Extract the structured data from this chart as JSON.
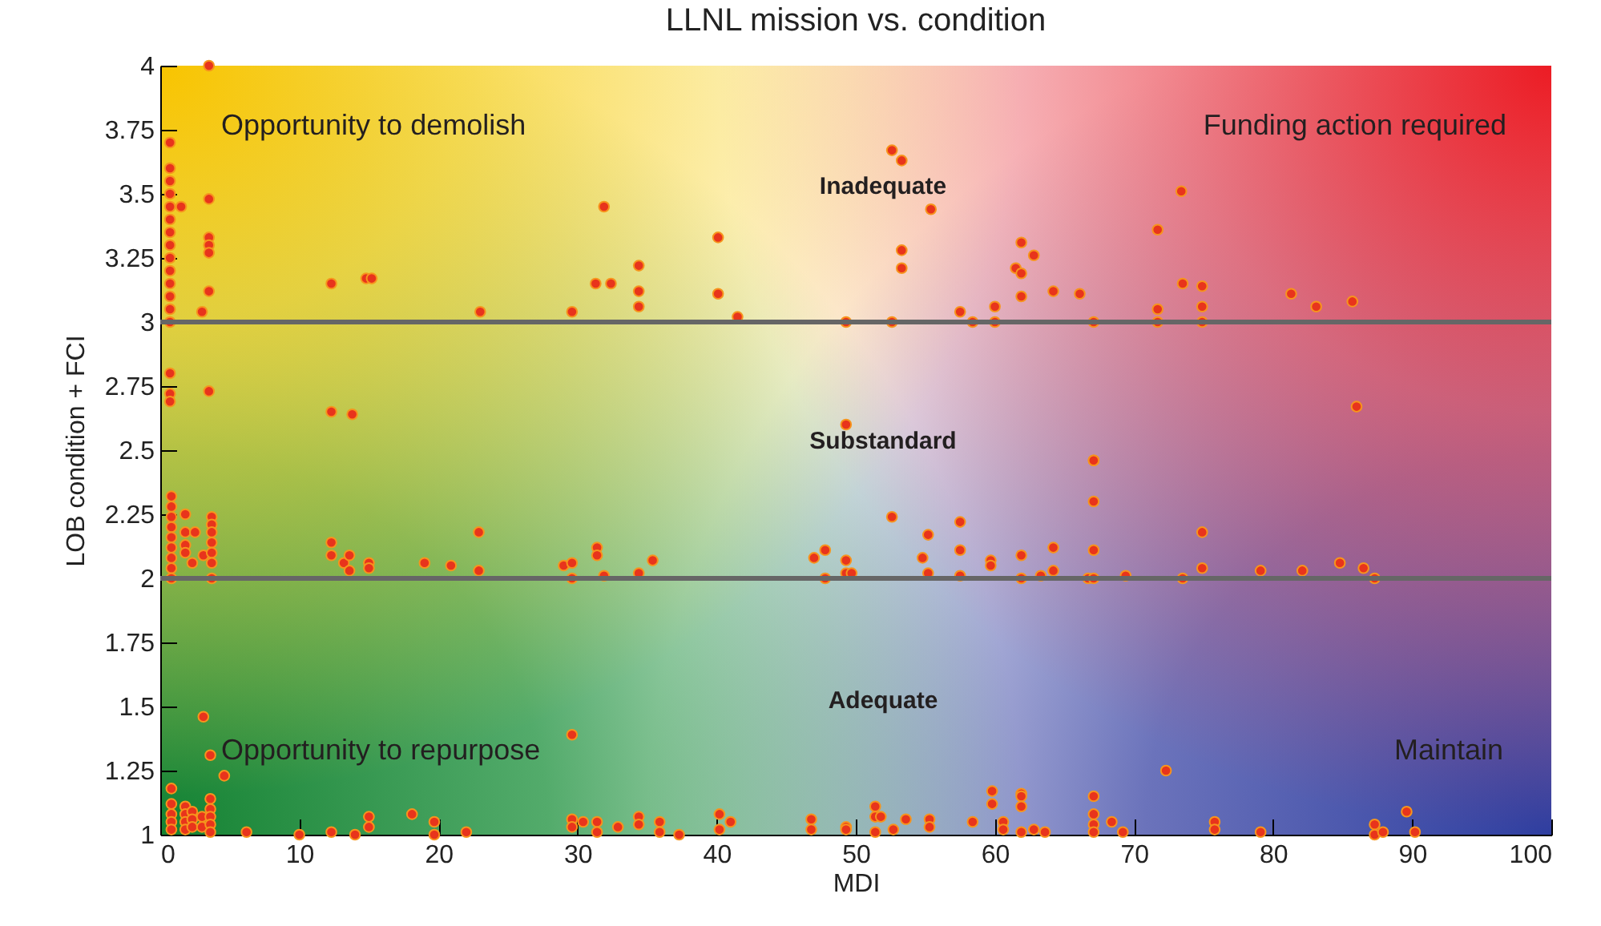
{
  "chart_data": {
    "type": "scatter",
    "title": "LLNL mission vs. condition",
    "xlabel": "MDI",
    "ylabel": "LOB condition + FCI",
    "xlim": [
      0,
      100
    ],
    "xticks": [
      0,
      10,
      20,
      30,
      40,
      50,
      60,
      70,
      80,
      90,
      100
    ],
    "ylim": [
      1,
      4
    ],
    "yticks": [
      1,
      1.25,
      1.5,
      1.75,
      2,
      2.25,
      2.5,
      2.75,
      3,
      3.25,
      3.5,
      3.75,
      4
    ],
    "grid": false,
    "marker": "circle",
    "ref_lines": [
      {
        "axis": "y",
        "value": 3,
        "color": "#666666"
      },
      {
        "axis": "y",
        "value": 2,
        "color": "#666666"
      }
    ],
    "annotations": [
      "Opportunity to demolish",
      "Funding action required",
      "Inadequate",
      "Substandard",
      "Adequate",
      "Opportunity to repurpose",
      "Maintain"
    ],
    "series": [
      {
        "color": "#e8341c",
        "x": [
          0.7,
          0.7,
          0.7,
          0.7,
          0.7,
          0.7,
          0.7,
          0.7,
          0.7,
          0.7,
          0.7,
          0.7,
          0.7,
          0.7,
          0.7,
          0.7,
          0.7,
          1.5,
          3.5,
          3.5,
          3.5,
          3.5,
          3.5,
          3.5,
          3.0,
          3.5,
          12.3,
          12.3,
          13.8,
          14.8,
          15.2,
          23,
          29.6,
          31.3,
          31.9,
          32.4,
          34.4,
          34.4,
          34.4,
          40.1,
          40.1,
          41.5,
          49.3,
          49.3,
          52.6,
          53.3,
          55.4,
          53.3,
          53.3,
          52.6,
          57.5,
          58.4,
          60.0,
          60.0,
          61.9,
          62.8,
          61.5,
          61.9,
          61.9,
          64.2,
          66.1,
          67.1,
          67.1,
          71.7,
          71.7,
          71.7,
          73.4,
          73.5,
          74.9,
          74.9,
          74.9,
          81.3,
          83.1,
          85.7,
          86.0,
          0.8,
          0.8,
          0.8,
          0.8,
          0.8,
          0.8,
          0.8,
          0.8,
          0.8,
          1.8,
          1.8,
          1.8,
          1.8,
          2.3,
          2.5,
          3.1,
          3.7,
          3.7,
          3.7,
          3.7,
          3.7,
          3.7,
          3.7,
          12.3,
          12.3,
          13.2,
          13.6,
          13.6,
          15,
          15,
          19,
          20.9,
          22.9,
          22.9,
          29,
          29.6,
          29.6,
          31.4,
          31.4,
          31.9,
          34.4,
          35.4,
          47.0,
          47.8,
          47.8,
          49.3,
          49.3,
          49.7,
          52.6,
          54.8,
          55.2,
          55.2,
          57.5,
          57.5,
          57.5,
          59.7,
          59.7,
          61.9,
          61.9,
          63.3,
          64.2,
          64.2,
          66.7,
          67.1,
          67.1,
          67.1,
          67.1,
          69.4,
          73.5,
          74.9,
          74.9,
          79.1,
          82.1,
          84.8,
          86.5,
          87.3,
          3.1,
          3.6,
          4.6,
          0.8,
          0.8,
          0.8,
          0.8,
          0.8,
          1.8,
          1.8,
          1.8,
          1.8,
          2.3,
          2.3,
          2.3,
          3.0,
          3.0,
          3.6,
          3.6,
          3.6,
          3.6,
          3.6,
          6.2,
          10,
          12.3,
          14,
          15,
          15,
          18.1,
          19.7,
          19.7,
          22,
          29.6,
          29.6,
          29.6,
          30.4,
          31.4,
          31.4,
          32.9,
          34.4,
          34.4,
          35.9,
          35.9,
          37.3,
          40.2,
          40.2,
          41,
          46.8,
          46.8,
          49.3,
          49.3,
          51.4,
          51.4,
          51.4,
          51.8,
          52.7,
          53.6,
          55.3,
          55.3,
          58.4,
          59.8,
          59.8,
          60.6,
          60.6,
          61.9,
          61.9,
          61.9,
          61.9,
          62.8,
          63.6,
          67.1,
          67.1,
          67.1,
          67.1,
          68.4,
          69.2,
          72.3,
          75.8,
          75.8,
          79.1,
          87.3,
          87.3,
          87.9,
          89.6,
          90.2
        ],
        "values": [
          3.7,
          3.6,
          3.55,
          3.5,
          3.45,
          3.4,
          3.35,
          3.3,
          3.25,
          3.2,
          3.15,
          3.1,
          3.05,
          3.0,
          2.8,
          2.72,
          2.69,
          3.45,
          4.0,
          3.48,
          3.33,
          3.3,
          3.27,
          3.12,
          3.04,
          2.73,
          3.15,
          2.65,
          2.64,
          3.17,
          3.17,
          3.04,
          3.04,
          3.15,
          3.45,
          3.15,
          3.22,
          3.12,
          3.06,
          3.33,
          3.11,
          3.02,
          3.0,
          2.6,
          3.67,
          3.63,
          3.44,
          3.28,
          3.21,
          3.0,
          3.04,
          3.0,
          3.06,
          3.0,
          3.31,
          3.26,
          3.21,
          3.19,
          3.1,
          3.12,
          3.11,
          3.0,
          2.46,
          3.36,
          3.05,
          3.0,
          3.51,
          3.15,
          3.14,
          3.06,
          3.0,
          3.11,
          3.06,
          3.08,
          2.67,
          2.32,
          2.28,
          2.24,
          2.2,
          2.16,
          2.12,
          2.08,
          2.04,
          2.0,
          2.25,
          2.18,
          2.13,
          2.1,
          2.06,
          2.18,
          2.09,
          2.24,
          2.21,
          2.18,
          2.14,
          2.1,
          2.06,
          2.0,
          2.14,
          2.09,
          2.06,
          2.09,
          2.03,
          2.06,
          2.04,
          2.06,
          2.05,
          2.18,
          2.03,
          2.05,
          2.06,
          2.0,
          2.12,
          2.09,
          2.01,
          2.02,
          2.07,
          2.08,
          2.11,
          2.0,
          2.07,
          2.02,
          2.02,
          2.24,
          2.08,
          2.17,
          2.02,
          2.22,
          2.11,
          2.01,
          2.07,
          2.05,
          2.09,
          2.0,
          2.01,
          2.12,
          2.03,
          2.0,
          2.46,
          2.3,
          2.11,
          2.0,
          2.01,
          2.0,
          2.18,
          2.04,
          2.03,
          2.03,
          2.06,
          2.04,
          2.0,
          1.46,
          1.31,
          1.23,
          1.18,
          1.12,
          1.08,
          1.05,
          1.02,
          1.11,
          1.08,
          1.05,
          1.02,
          1.09,
          1.06,
          1.03,
          1.07,
          1.03,
          1.14,
          1.1,
          1.07,
          1.04,
          1.01,
          1.01,
          1.0,
          1.01,
          1.0,
          1.07,
          1.03,
          1.08,
          1.05,
          1.0,
          1.01,
          1.39,
          1.06,
          1.03,
          1.05,
          1.05,
          1.01,
          1.03,
          1.07,
          1.04,
          1.05,
          1.01,
          1.0,
          1.08,
          1.02,
          1.05,
          1.06,
          1.02,
          1.03,
          1.02,
          1.11,
          1.07,
          1.01,
          1.07,
          1.02,
          1.06,
          1.06,
          1.03,
          1.05,
          1.17,
          1.12,
          1.05,
          1.02,
          1.16,
          1.15,
          1.11,
          1.01,
          1.02,
          1.01,
          1.15,
          1.08,
          1.04,
          1.01,
          1.05,
          1.01,
          1.25,
          1.05,
          1.02,
          1.01,
          1.04,
          1.0,
          1.01,
          1.09,
          1.01
        ]
      }
    ]
  }
}
